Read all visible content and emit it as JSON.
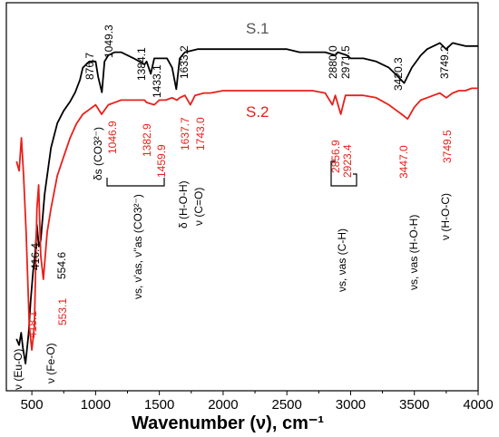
{
  "chart_data": {
    "type": "line",
    "xlabel": "Wavenumber (ν), cm⁻¹",
    "xlim": [
      300,
      4000
    ],
    "xticks": [
      500,
      1000,
      1500,
      2000,
      2500,
      3000,
      3500,
      4000
    ],
    "grid": false,
    "y_axis_shown": false,
    "series": [
      {
        "name": "S.1",
        "color": "#000000",
        "x": [
          380,
          400,
          416,
          430,
          450,
          475,
          490,
          510,
          525,
          540,
          555,
          570,
          600,
          650,
          700,
          750,
          800,
          840,
          877,
          900,
          950,
          1000,
          1020,
          1049,
          1070,
          1100,
          1150,
          1200,
          1300,
          1384,
          1400,
          1433,
          1460,
          1500,
          1560,
          1600,
          1633,
          1660,
          1700,
          1800,
          1900,
          2000,
          2100,
          2200,
          2300,
          2400,
          2500,
          2600,
          2700,
          2800,
          2880,
          2900,
          2971,
          3000,
          3100,
          3200,
          3300,
          3350,
          3420,
          3480,
          3550,
          3600,
          3650,
          3700,
          3749,
          3800,
          3900,
          4000
        ],
        "y": [
          82,
          84,
          80,
          85,
          90,
          80,
          70,
          60,
          55,
          45,
          52,
          50,
          35,
          20,
          12,
          8,
          5,
          2,
          -2,
          -6,
          -8,
          -8,
          -3,
          2,
          -8,
          -10,
          -11,
          -11,
          -9,
          -7,
          -8,
          -4,
          -9,
          -9,
          -9,
          -6,
          1,
          -9,
          -11,
          -12,
          -12,
          -12,
          -12,
          -12,
          -12,
          -12,
          -12,
          -11,
          -11,
          -11,
          -10,
          -11,
          -10,
          -9,
          -9,
          -8,
          -6,
          -4,
          -1,
          -6,
          -10,
          -12,
          -13,
          -14,
          -12,
          -14,
          -13,
          -13
        ]
      },
      {
        "name": "S.2",
        "color": "#e8201a",
        "x": [
          380,
          400,
          418,
          435,
          455,
          480,
          500,
          520,
          540,
          553,
          570,
          590,
          620,
          650,
          700,
          750,
          800,
          850,
          900,
          950,
          1000,
          1047,
          1100,
          1200,
          1300,
          1383,
          1400,
          1460,
          1500,
          1550,
          1600,
          1638,
          1660,
          1700,
          1743,
          1780,
          1850,
          1900,
          2000,
          2100,
          2200,
          2300,
          2400,
          2500,
          2600,
          2700,
          2800,
          2857,
          2880,
          2923,
          2960,
          3000,
          3100,
          3200,
          3300,
          3350,
          3400,
          3447,
          3500,
          3550,
          3600,
          3650,
          3700,
          3750,
          3800,
          3850,
          3900,
          3950,
          4000
        ],
        "y": [
          15,
          17,
          10,
          18,
          30,
          50,
          55,
          50,
          25,
          20,
          35,
          40,
          30,
          25,
          18,
          14,
          10,
          7,
          5,
          4,
          3,
          5,
          3,
          2,
          2,
          2,
          2.5,
          3,
          2,
          2,
          1.5,
          2,
          1.5,
          1,
          3,
          1,
          0.5,
          0.5,
          0,
          0,
          0,
          0,
          0,
          0,
          0,
          0,
          0.5,
          3,
          1,
          5,
          1,
          1,
          1,
          1.5,
          3,
          4,
          5,
          6,
          3.5,
          2,
          1.5,
          1,
          0.5,
          1.5,
          0.5,
          0,
          0,
          -0.5,
          -0.5
        ]
      }
    ],
    "peak_labels_s1": [
      "416.4",
      "554.6",
      "876.7",
      "1049.3",
      "1384.1",
      "1433.1",
      "1633.2",
      "2880.0",
      "2971.5",
      "3420.3",
      "3749.2"
    ],
    "peak_labels_s2": [
      "418.1",
      "553.1",
      "1046.9",
      "1382.9",
      "1459.9",
      "1637.7",
      "1743.0",
      "2856.9",
      "2923.4",
      "3447.0",
      "3749.5"
    ],
    "assignments": {
      "eu_o": "ν (Eu-O)",
      "fe_o": "ν (Fe-O)",
      "co3_s": "δs (CO3²⁻)",
      "co3_as": "νs, ν'as, ν''as (CO3²⁻)",
      "hoh_bend": "δ (H-O-H)",
      "co": "ν (C=O)",
      "ch": "νs, νas (C-H)",
      "hoh_stretch": "νs, νas (H-O-H)",
      "hoc": "ν (H-O-C)"
    }
  }
}
